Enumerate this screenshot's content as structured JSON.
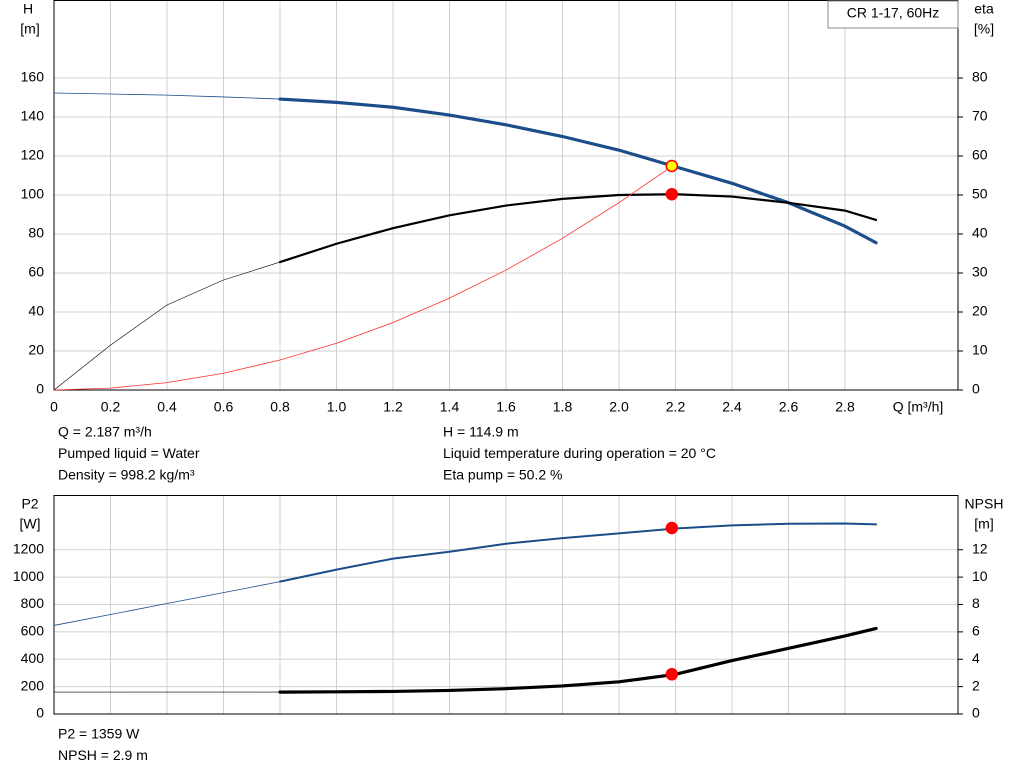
{
  "chart_data": [
    {
      "type": "line",
      "title": "CR 1-17, 60Hz",
      "ylabel": [
        "H",
        "[m]"
      ],
      "y2label": [
        "eta",
        "[%]"
      ],
      "xlabel": "Q [m³/h]",
      "x": [
        0,
        0.2,
        0.4,
        0.6,
        0.8,
        1.0,
        1.2,
        1.4,
        1.6,
        1.8,
        2.0,
        2.2,
        2.4,
        2.6,
        2.8,
        2.91
      ],
      "xlim": [
        0,
        3.2
      ],
      "ylim": [
        0,
        200
      ],
      "y2lim": [
        0,
        100
      ],
      "xticks": [
        0,
        0.2,
        0.4,
        0.6,
        0.8,
        {
          "value": 1,
          "label": "1.0"
        },
        1.2,
        1.4,
        1.6,
        1.8,
        {
          "value": 2,
          "label": "2.0"
        },
        2.2,
        2.4,
        2.6,
        2.8
      ],
      "yticks": [
        0,
        20,
        40,
        60,
        80,
        100,
        120,
        140,
        160
      ],
      "y2ticks": [
        0,
        10,
        20,
        30,
        40,
        50,
        60,
        70,
        80
      ],
      "xtick_labels": true,
      "grid": true,
      "series": [
        {
          "color": "#1a4d8a",
          "width": 0.8,
          "values": [
            152.3,
            151.8,
            151.2,
            150.3,
            149.2,
            null,
            null,
            null,
            null,
            null,
            null,
            null,
            null,
            null,
            null,
            null
          ]
        },
        {
          "color": "#1a4d8a",
          "width": 3.2,
          "values": [
            null,
            null,
            null,
            null,
            149.2,
            147.5,
            145,
            141,
            136,
            130,
            123,
            114.5,
            106,
            96,
            84,
            75.5
          ]
        },
        {
          "color": "#000000",
          "width": 0.6,
          "axis": "y2",
          "values": [
            0,
            11.5,
            21.8,
            28.2,
            32.8,
            null,
            null,
            null,
            null,
            null,
            null,
            null,
            null,
            null,
            null,
            null
          ]
        },
        {
          "color": "#000000",
          "width": 2.2,
          "axis": "y2",
          "values": [
            null,
            null,
            null,
            null,
            32.8,
            37.5,
            41.5,
            44.8,
            47.3,
            49,
            50,
            50.2,
            49.6,
            48,
            46,
            43.6
          ]
        },
        {
          "color": "#ff3030",
          "width": 0.8,
          "values": [
            0,
            0.96,
            3.8,
            8.6,
            15.4,
            24,
            34.6,
            47.1,
            61.5,
            77.8,
            96.1,
            116,
            null,
            null,
            null,
            null
          ]
        }
      ],
      "points": [
        {
          "x": 2.187,
          "y": 114.9,
          "color": "#ffff00",
          "stroke": "#ff0000"
        },
        {
          "x": 2.187,
          "y": 50.2,
          "axis": "y2",
          "color": "#ff0000",
          "stroke": "#ff0000"
        }
      ],
      "annotations": [
        [
          "Q = 2.187 m³/h",
          "Pumped liquid = Water",
          "Density = 998.2 kg/m³"
        ],
        [
          "H = 114.9 m",
          "Liquid temperature during operation = 20 °C",
          "Eta pump = 50.2 %"
        ]
      ]
    },
    {
      "type": "line",
      "ylabel": [
        "P2",
        "[W]"
      ],
      "y2label": [
        "NPSH",
        "[m]"
      ],
      "x": [
        0,
        0.2,
        0.4,
        0.6,
        0.8,
        1.0,
        1.2,
        1.4,
        1.6,
        1.8,
        2.0,
        2.2,
        2.4,
        2.6,
        2.8,
        2.91
      ],
      "xlim": [
        0,
        3.2
      ],
      "ylim": [
        0,
        1600
      ],
      "y2lim": [
        0,
        16
      ],
      "xticks": [
        0,
        0.2,
        0.4,
        0.6,
        0.8,
        1,
        1.2,
        1.4,
        1.6,
        1.8,
        2,
        2.2,
        2.4,
        2.6,
        2.8
      ],
      "yticks": [
        0,
        200,
        400,
        600,
        800,
        1000,
        1200
      ],
      "y2ticks": [
        0,
        2,
        4,
        6,
        8,
        10,
        12
      ],
      "xtick_labels": false,
      "grid": true,
      "series": [
        {
          "color": "#1a4d8a",
          "width": 0.8,
          "values": [
            647,
            727,
            807,
            887,
            967,
            null,
            null,
            null,
            null,
            null,
            null,
            null,
            null,
            null,
            null,
            null
          ]
        },
        {
          "color": "#1a4d8a",
          "width": 2,
          "values": [
            null,
            null,
            null,
            null,
            967,
            1055,
            1135,
            1185,
            1244,
            1285,
            1320,
            1355,
            1378,
            1390,
            1392,
            1385
          ]
        },
        {
          "color": "#000000",
          "width": 0.6,
          "axis": "y2",
          "values": [
            1.6,
            1.6,
            1.6,
            1.6,
            1.6,
            null,
            null,
            null,
            null,
            null,
            null,
            null,
            null,
            null,
            null,
            null
          ]
        },
        {
          "color": "#000000",
          "width": 3.2,
          "axis": "y2",
          "values": [
            null,
            null,
            null,
            null,
            1.6,
            1.62,
            1.65,
            1.72,
            1.85,
            2.05,
            2.35,
            2.9,
            3.9,
            4.8,
            5.7,
            6.25
          ]
        }
      ],
      "points": [
        {
          "x": 2.187,
          "y": 1359,
          "color": "#ff0000",
          "stroke": "#ff0000"
        },
        {
          "x": 2.187,
          "y": 2.9,
          "axis": "y2",
          "color": "#ff0000",
          "stroke": "#ff0000"
        }
      ],
      "annotations": [
        [
          "P2 = 1359 W",
          "NPSH = 2.9 m"
        ]
      ]
    }
  ]
}
